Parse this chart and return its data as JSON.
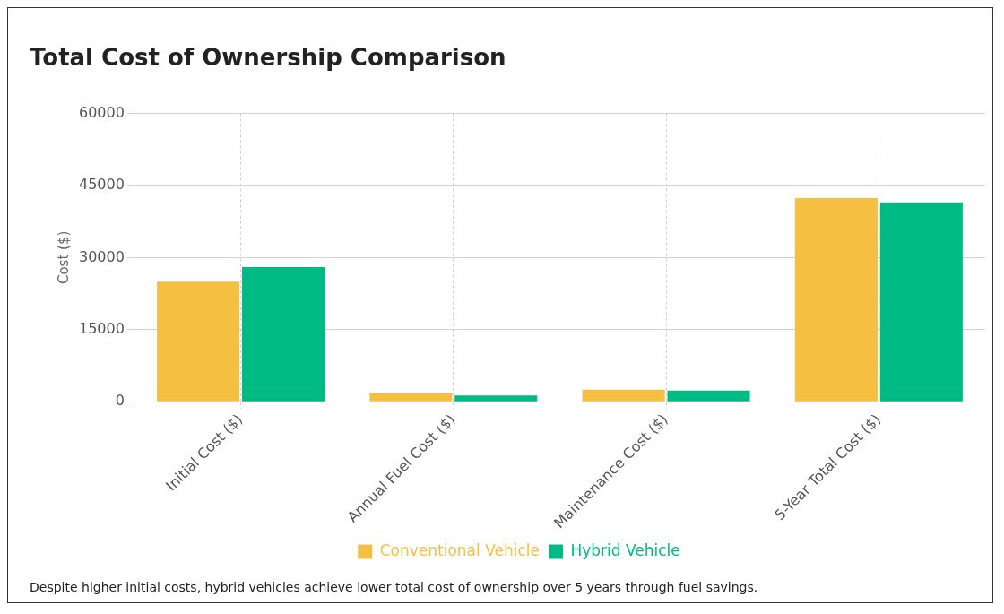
{
  "chart_data": {
    "type": "bar",
    "title": "Total Cost of Ownership Comparison",
    "ylabel": "Cost ($)",
    "categories": [
      "Initial Cost ($)",
      "Annual Fuel Cost ($)",
      "Maintenance Cost ($)",
      "5-Year Total Cost ($)"
    ],
    "series": [
      {
        "name": "Conventional Vehicle",
        "color": "#f5c042",
        "values": [
          25000,
          1800,
          2500,
          42400
        ]
      },
      {
        "name": "Hybrid Vehicle",
        "color": "#00ba84",
        "values": [
          28000,
          1300,
          2300,
          41500
        ]
      }
    ],
    "ylim": [
      0,
      60000
    ],
    "yticks": [
      0,
      15000,
      30000,
      45000,
      60000
    ],
    "grid": true,
    "legend": "bottom",
    "annotations": [
      "Despite higher initial costs, hybrid vehicles achieve lower total cost of ownership over 5 years through fuel savings."
    ]
  }
}
